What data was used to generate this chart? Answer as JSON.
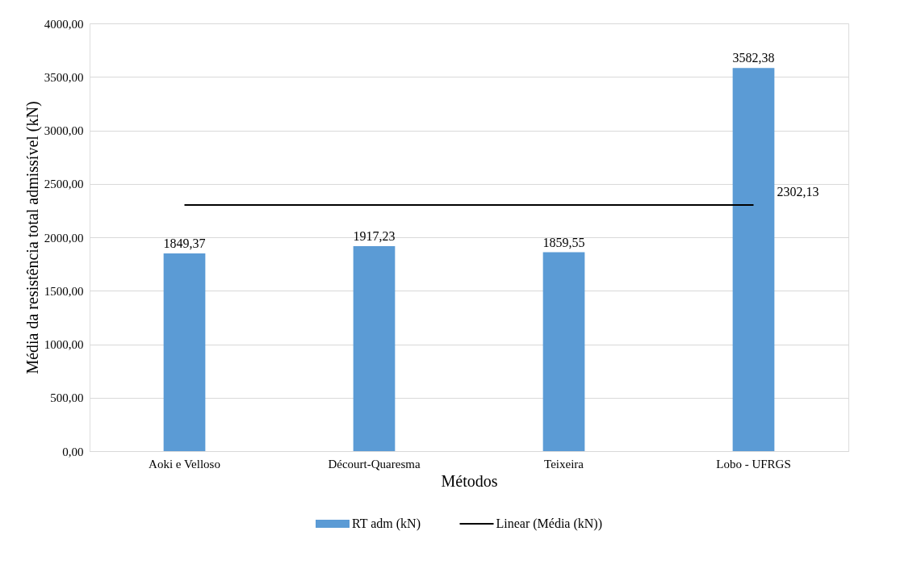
{
  "chart_data": {
    "type": "bar",
    "xlabel": "Métodos",
    "ylabel": "Média da resistência total admissível (kN)",
    "categories": [
      "Aoki e Velloso",
      "Décourt-Quaresma",
      "Teixeira",
      "Lobo - UFRGS"
    ],
    "series": [
      {
        "name": "RT adm (kN)",
        "color": "#5b9bd5",
        "values": [
          1849.37,
          1917.23,
          1859.55,
          3582.38
        ],
        "value_labels": [
          "1849,37",
          "1917,23",
          "1859,55",
          "3582,38"
        ]
      },
      {
        "name": "Linear (Média (kN))",
        "type": "line",
        "color": "#000000",
        "values": [
          2302.13,
          2302.13,
          2302.13,
          2302.13
        ],
        "value_labels": [
          null,
          null,
          null,
          "2302,13"
        ]
      }
    ],
    "ylim": [
      0,
      4000
    ],
    "yticks": [
      {
        "value": 0,
        "label": "0,00"
      },
      {
        "value": 500,
        "label": "500,00"
      },
      {
        "value": 1000,
        "label": "1000,00"
      },
      {
        "value": 1500,
        "label": "1500,00"
      },
      {
        "value": 2000,
        "label": "2000,00"
      },
      {
        "value": 2500,
        "label": "2500,00"
      },
      {
        "value": 3000,
        "label": "3000,00"
      },
      {
        "value": 3500,
        "label": "3500,00"
      },
      {
        "value": 4000,
        "label": "4000,00"
      }
    ],
    "grid": "y",
    "legend": "bottom",
    "marker": "none",
    "line_style": "solid"
  }
}
